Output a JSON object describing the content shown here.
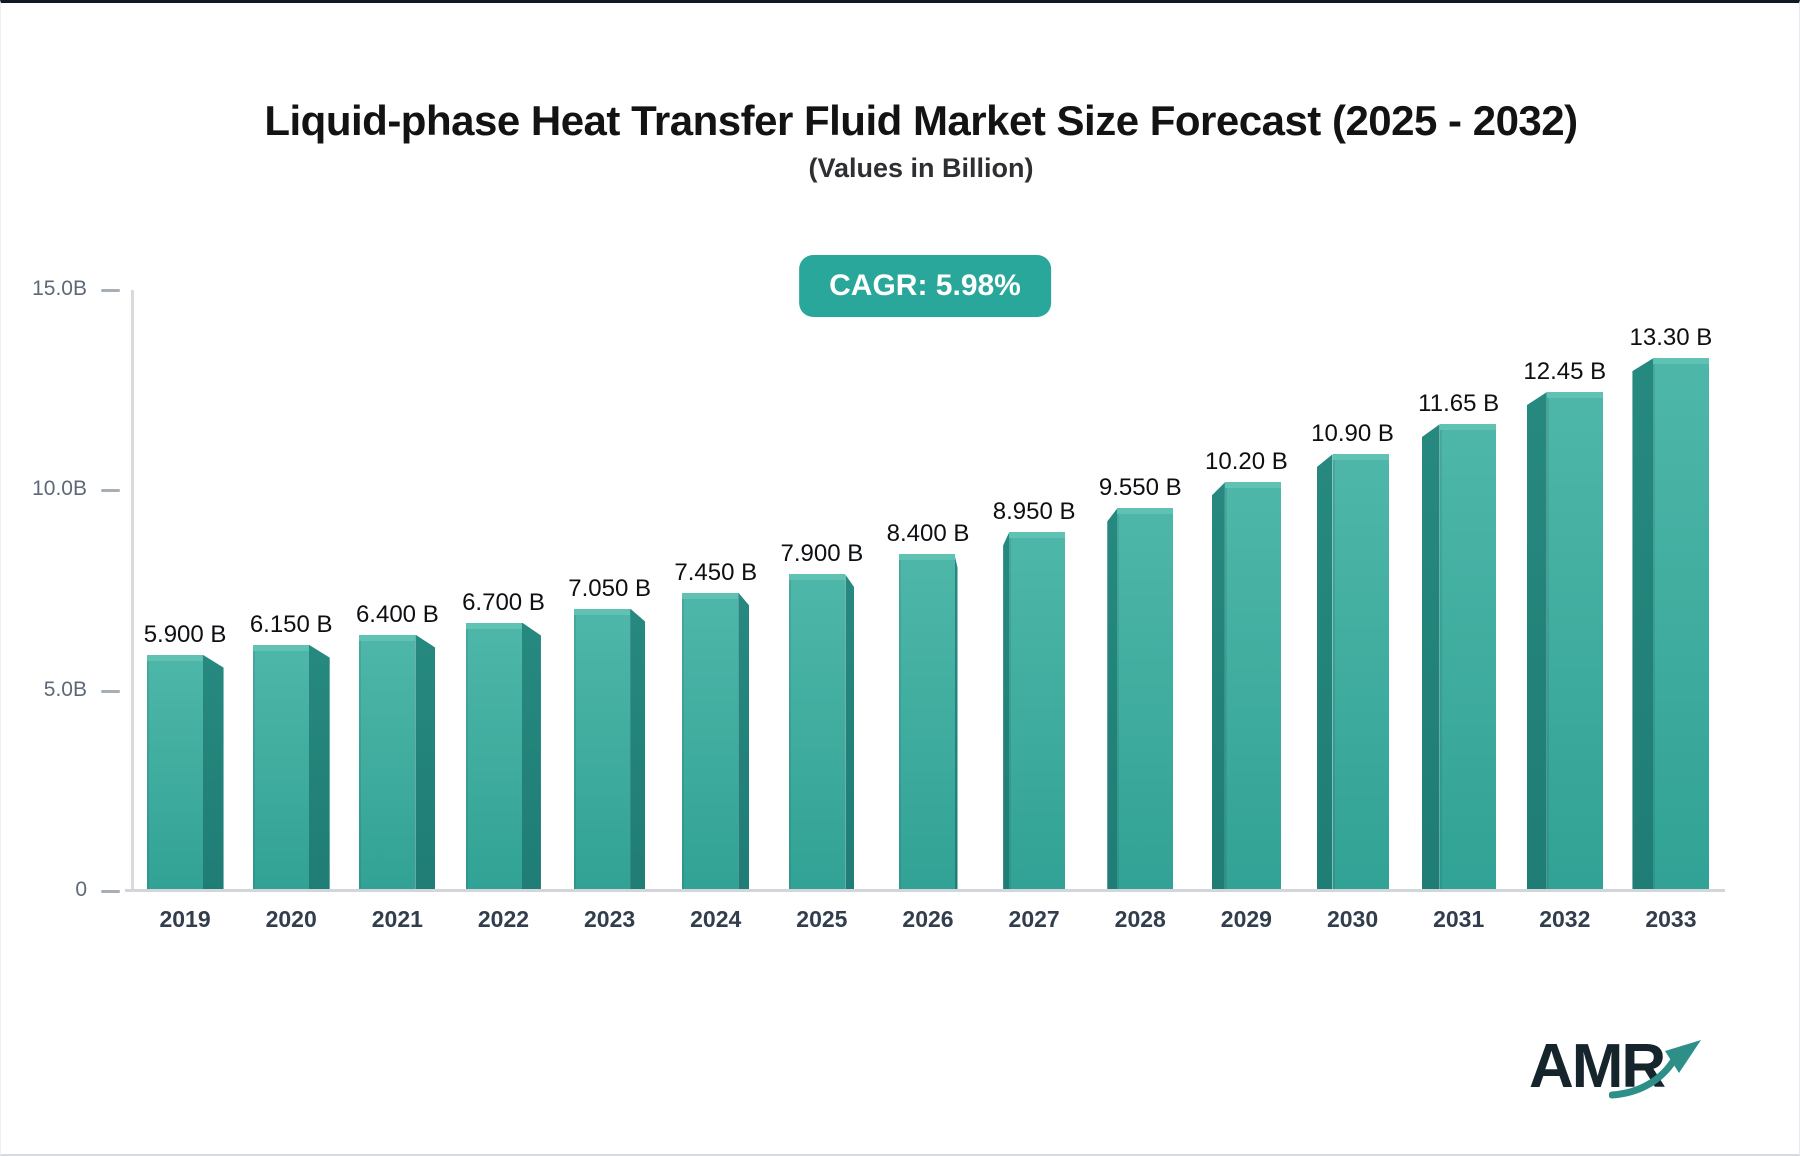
{
  "header": {
    "title": "Liquid-phase Heat Transfer Fluid Market Size Forecast (2025 - 2032)",
    "subtitle": "(Values in Billion)",
    "cagr_label": "CAGR: 5.98%"
  },
  "logo": {
    "text": "AMR"
  },
  "colors": {
    "badge_bg": "#2aa79b",
    "bar_front_top": "#4eb7a9",
    "bar_front_bottom": "#31a295",
    "bar_top_face": "#5fc2b2",
    "bar_side": "#1f7d75",
    "axis_line": "#d8dade",
    "arrow": "#2e8f88"
  },
  "chart_data": {
    "type": "bar",
    "title": "Liquid-phase Heat Transfer Fluid Market Size Forecast (2025 - 2032)",
    "subtitle": "(Values in Billion)",
    "cagr_percent": 5.98,
    "xlabel": "",
    "ylabel": "",
    "ylim": [
      0,
      15
    ],
    "grid": false,
    "legend": false,
    "categories": [
      "2019",
      "2020",
      "2021",
      "2022",
      "2023",
      "2024",
      "2025",
      "2026",
      "2027",
      "2028",
      "2029",
      "2030",
      "2031",
      "2032",
      "2033"
    ],
    "values": [
      5.9,
      6.15,
      6.4,
      6.7,
      7.05,
      7.45,
      7.9,
      8.4,
      8.95,
      9.55,
      10.2,
      10.9,
      11.65,
      12.45,
      13.3
    ],
    "value_labels": [
      "5.900 B",
      "6.150 B",
      "6.400 B",
      "6.700 B",
      "7.050 B",
      "7.450 B",
      "7.900 B",
      "8.400 B",
      "8.950 B",
      "9.550 B",
      "10.20 B",
      "10.90 B",
      "11.65 B",
      "12.45 B",
      "13.30 B"
    ],
    "yticks": [
      {
        "value": 0,
        "label": "0"
      },
      {
        "value": 5,
        "label": "5.0B"
      },
      {
        "value": 10,
        "label": "10.0B"
      },
      {
        "value": 15,
        "label": "15.0B"
      }
    ]
  }
}
